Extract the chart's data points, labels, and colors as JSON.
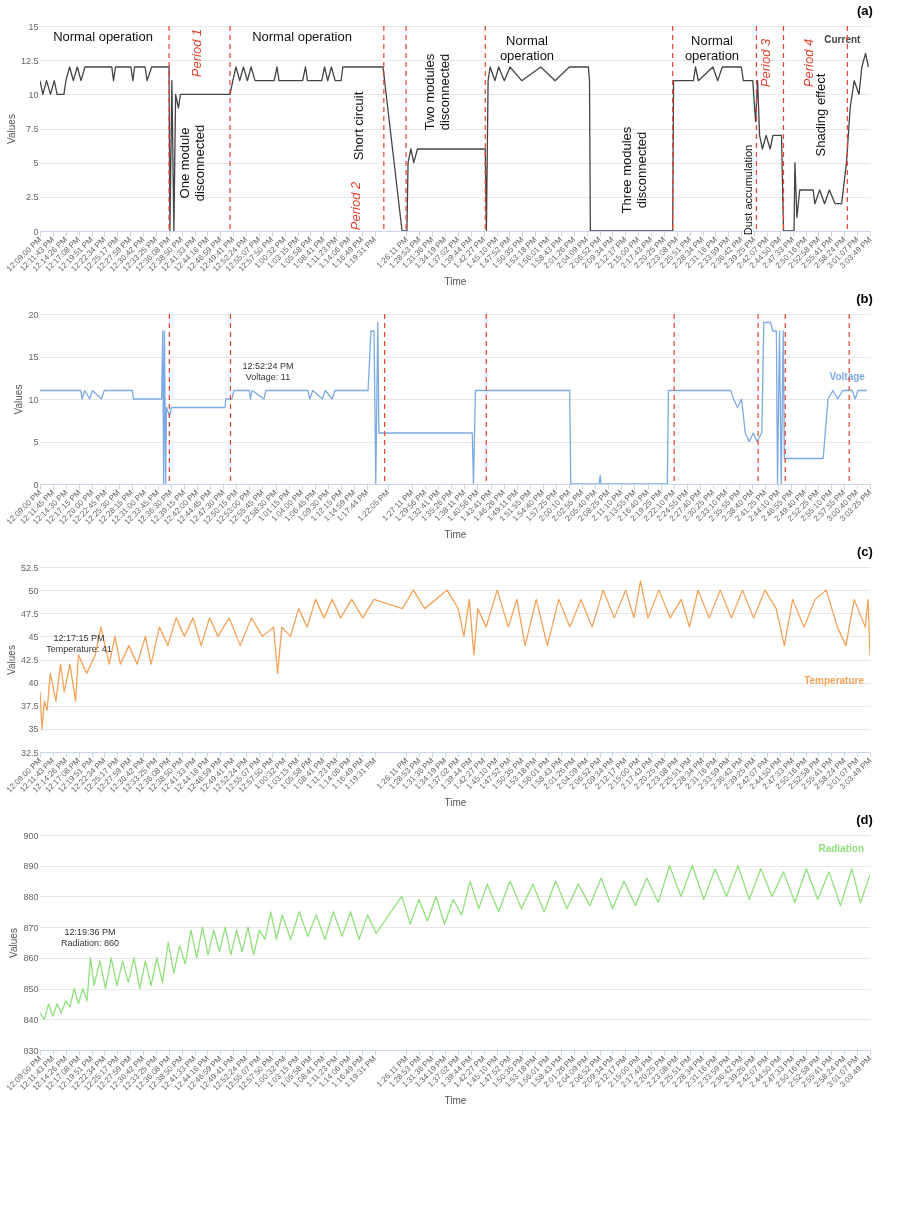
{
  "chart_data": [
    {
      "type": "line",
      "title": "(a)",
      "xlabel": "Time",
      "ylabel": "Values",
      "grid": "y",
      "xlim": [
        12.15,
        15.0636
      ],
      "ylim": [
        0,
        15
      ],
      "yticks": [
        0,
        2.5,
        5,
        7.5,
        10,
        12.5,
        15
      ],
      "xticks": [
        {
          "value": 12.15,
          "label": "12:09:00 PM"
        },
        {
          "value": 12.1953,
          "label": "12:11:43 PM"
        },
        {
          "value": 12.2406,
          "label": "12:14:26 PM"
        },
        {
          "value": 12.2856,
          "label": "12:17:08 PM"
        },
        {
          "value": 12.3308,
          "label": "12:19:51 PM"
        },
        {
          "value": 12.3761,
          "label": "12:22:34 PM"
        },
        {
          "value": 12.4214,
          "label": "12:25:17 PM"
        },
        {
          "value": 12.4664,
          "label": "12:27:59 PM"
        },
        {
          "value": 12.5117,
          "label": "12:30:42 PM"
        },
        {
          "value": 12.5569,
          "label": "12:33:25 PM"
        },
        {
          "value": 12.6022,
          "label": "12:36:08 PM"
        },
        {
          "value": 12.6472,
          "label": "12:38:50 PM"
        },
        {
          "value": 12.6925,
          "label": "12:41:33 PM"
        },
        {
          "value": 12.7378,
          "label": "12:44:16 PM"
        },
        {
          "value": 12.7831,
          "label": "12:46:59 PM"
        },
        {
          "value": 12.8281,
          "label": "12:49:41 PM"
        },
        {
          "value": 12.8733,
          "label": "12:52:24 PM"
        },
        {
          "value": 12.9186,
          "label": "12:55:07 PM"
        },
        {
          "value": 12.9639,
          "label": "12:57:50 PM"
        },
        {
          "value": 13.0089,
          "label": "1:00:32 PM"
        },
        {
          "value": 13.0542,
          "label": "1:03:15 PM"
        },
        {
          "value": 13.0994,
          "label": "1:05:58 PM"
        },
        {
          "value": 13.1447,
          "label": "1:08:41 PM"
        },
        {
          "value": 13.1897,
          "label": "1:11:23 PM"
        },
        {
          "value": 13.235,
          "label": "1:14:06 PM"
        },
        {
          "value": 13.2803,
          "label": "1:16:49 PM"
        },
        {
          "value": 13.3253,
          "label": "1:19:31 PM"
        },
        {
          "value": 13.4364,
          "label": "1:26:11 PM"
        },
        {
          "value": 13.4814,
          "label": "1:28:53 PM"
        },
        {
          "value": 13.5267,
          "label": "1:31:36 PM"
        },
        {
          "value": 13.5719,
          "label": "1:34:19 PM"
        },
        {
          "value": 13.6172,
          "label": "1:37:02 PM"
        },
        {
          "value": 13.6622,
          "label": "1:39:44 PM"
        },
        {
          "value": 13.7075,
          "label": "1:42:27 PM"
        },
        {
          "value": 13.7528,
          "label": "1:45:10 PM"
        },
        {
          "value": 13.7978,
          "label": "1:47:52 PM"
        },
        {
          "value": 13.8431,
          "label": "1:50:35 PM"
        },
        {
          "value": 13.8883,
          "label": "1:53:18 PM"
        },
        {
          "value": 13.9336,
          "label": "1:56:01 PM"
        },
        {
          "value": 13.9786,
          "label": "1:58:43 PM"
        },
        {
          "value": 14.0239,
          "label": "2:01:26 PM"
        },
        {
          "value": 14.0692,
          "label": "2:04:09 PM"
        },
        {
          "value": 14.1144,
          "label": "2:06:52 PM"
        },
        {
          "value": 14.1594,
          "label": "2:09:34 PM"
        },
        {
          "value": 14.2047,
          "label": "2:12:17 PM"
        },
        {
          "value": 14.25,
          "label": "2:15:00 PM"
        },
        {
          "value": 14.2953,
          "label": "2:17:43 PM"
        },
        {
          "value": 14.3403,
          "label": "2:20:25 PM"
        },
        {
          "value": 14.3856,
          "label": "2:23:08 PM"
        },
        {
          "value": 14.4308,
          "label": "2:25:51 PM"
        },
        {
          "value": 14.4761,
          "label": "2:28:34 PM"
        },
        {
          "value": 14.5211,
          "label": "2:31:16 PM"
        },
        {
          "value": 14.5664,
          "label": "2:33:59 PM"
        },
        {
          "value": 14.6117,
          "label": "2:36:42 PM"
        },
        {
          "value": 14.6569,
          "label": "2:39:25 PM"
        },
        {
          "value": 14.7019,
          "label": "2:42:07 PM"
        },
        {
          "value": 14.7472,
          "label": "2:44:50 PM"
        },
        {
          "value": 14.7925,
          "label": "2:47:33 PM"
        },
        {
          "value": 14.8378,
          "label": "2:50:16 PM"
        },
        {
          "value": 14.8828,
          "label": "2:52:58 PM"
        },
        {
          "value": 14.9281,
          "label": "2:55:41 PM"
        },
        {
          "value": 14.9733,
          "label": "2:58:24 PM"
        },
        {
          "value": 15.0186,
          "label": "3:01:07 PM"
        },
        {
          "value": 15.0636,
          "label": "3:03:49 PM"
        }
      ],
      "series": [
        {
          "name": "Current",
          "color": "#444444",
          "x": [
            12.15,
            12.16,
            12.173,
            12.187,
            12.2,
            12.21,
            12.234,
            12.241,
            12.254,
            12.267,
            12.281,
            12.294,
            12.308,
            12.402,
            12.408,
            12.415,
            12.469,
            12.476,
            12.482,
            12.519,
            12.526,
            12.542,
            12.603,
            12.606,
            12.613,
            12.62,
            12.626,
            12.636,
            12.643,
            12.817,
            12.827,
            12.838,
            12.851,
            12.864,
            12.878,
            12.891,
            12.905,
            12.972,
            12.982,
            12.989,
            13.072,
            13.082,
            13.089,
            13.139,
            13.149,
            13.16,
            13.173,
            13.186,
            13.207,
            13.213,
            13.354,
            13.421,
            13.438,
            13.442,
            13.452,
            13.462,
            13.475,
            13.713,
            13.717,
            13.723,
            13.73,
            13.747,
            13.76,
            13.78,
            13.8,
            13.841,
            13.908,
            13.958,
            14.008,
            14.075,
            14.079,
            14.082,
            14.371,
            14.374,
            14.444,
            14.451,
            14.461,
            14.512,
            14.529,
            14.545,
            14.612,
            14.619,
            14.652,
            14.662,
            14.669,
            14.676,
            14.686,
            14.699,
            14.713,
            14.723,
            14.753,
            14.76,
            14.797,
            14.8,
            14.807,
            14.817,
            14.864,
            14.87,
            14.887,
            14.904,
            14.921,
            14.941,
            14.964,
            14.981,
            14.994,
            15.008,
            15.025,
            15.035,
            15.048,
            15.058
          ],
          "values": [
            11,
            10,
            11,
            10,
            11,
            10,
            10,
            11,
            12,
            11,
            12,
            11,
            12,
            12,
            11,
            12,
            12,
            11,
            12,
            12,
            11,
            12,
            12,
            0,
            11,
            0,
            10,
            9,
            10,
            10,
            11,
            12,
            11,
            12,
            11,
            12,
            11,
            11,
            12,
            11,
            11,
            12,
            11,
            11,
            12,
            11,
            12,
            11,
            11,
            12,
            12,
            0,
            0,
            5,
            6,
            5,
            6,
            6,
            0,
            11,
            12,
            11,
            12,
            11,
            12,
            11,
            12,
            11,
            12,
            12,
            11,
            0,
            0,
            11,
            11,
            12,
            11,
            12,
            11,
            12,
            12,
            11,
            11,
            8,
            11,
            7,
            6,
            7,
            6,
            7,
            7,
            0,
            0,
            5,
            1,
            3,
            3,
            2,
            3,
            2,
            3,
            2,
            2,
            5,
            9,
            11,
            10,
            12,
            13,
            12
          ]
        }
      ],
      "ref_lines": [
        {
          "axis": "x",
          "value": 12.603,
          "color": "#e8412c",
          "line_style": "dashed"
        },
        {
          "axis": "x",
          "value": 12.817,
          "color": "#e8412c",
          "line_style": "dashed"
        },
        {
          "axis": "x",
          "value": 13.357,
          "color": "#e8412c",
          "line_style": "dashed"
        },
        {
          "axis": "x",
          "value": 13.435,
          "color": "#e8412c",
          "line_style": "dashed"
        },
        {
          "axis": "x",
          "value": 13.713,
          "color": "#e8412c",
          "line_style": "dashed"
        },
        {
          "axis": "x",
          "value": 14.371,
          "color": "#e8412c",
          "line_style": "dashed"
        },
        {
          "axis": "x",
          "value": 14.665,
          "color": "#e8412c",
          "line_style": "dashed"
        },
        {
          "axis": "x",
          "value": 14.76,
          "color": "#e8412c",
          "line_style": "dashed"
        },
        {
          "axis": "x",
          "value": 14.984,
          "color": "#e8412c",
          "line_style": "dashed"
        }
      ],
      "annotations": [
        "Normal operation",
        "Normal operation",
        "Normal operation",
        "Normal operation",
        "One module disconnected",
        "Short circuit",
        "Two modules disconnected",
        "Three modules disconnected",
        "Dust accumulation",
        "Shading effect",
        "Period 1",
        "Period 2",
        "Period 3",
        "Period 4"
      ]
    },
    {
      "type": "line",
      "title": "(b)",
      "xlabel": "Time",
      "ylabel": "Values",
      "grid": "y",
      "xlim": [
        12.15,
        15.0569
      ],
      "ylim": [
        0,
        20
      ],
      "yticks": [
        0,
        5,
        10,
        15,
        20
      ],
      "xticks": [
        {
          "value": 12.15,
          "label": "12:09:00 PM"
        },
        {
          "value": 12.1958,
          "label": "12:11:45 PM"
        },
        {
          "value": 12.2417,
          "label": "12:14:30 PM"
        },
        {
          "value": 12.2875,
          "label": "12:17:15 PM"
        },
        {
          "value": 12.3333,
          "label": "12:20:00 PM"
        },
        {
          "value": 12.3792,
          "label": "12:22:45 PM"
        },
        {
          "value": 12.425,
          "label": "12:25:30 PM"
        },
        {
          "value": 12.4708,
          "label": "12:28:15 PM"
        },
        {
          "value": 12.5167,
          "label": "12:31:00 PM"
        },
        {
          "value": 12.5625,
          "label": "12:33:45 PM"
        },
        {
          "value": 12.6083,
          "label": "12:36:30 PM"
        },
        {
          "value": 12.6542,
          "label": "12:39:15 PM"
        },
        {
          "value": 12.7,
          "label": "12:42:00 PM"
        },
        {
          "value": 12.7458,
          "label": "12:44:45 PM"
        },
        {
          "value": 12.7917,
          "label": "12:47:30 PM"
        },
        {
          "value": 12.8375,
          "label": "12:50:15 PM"
        },
        {
          "value": 12.8833,
          "label": "12:53:00 PM"
        },
        {
          "value": 12.9292,
          "label": "12:55:45 PM"
        },
        {
          "value": 12.975,
          "label": "12:58:30 PM"
        },
        {
          "value": 13.0208,
          "label": "1:01:15 PM"
        },
        {
          "value": 13.0667,
          "label": "1:04:00 PM"
        },
        {
          "value": 13.1125,
          "label": "1:06:45 PM"
        },
        {
          "value": 13.1583,
          "label": "1:09:30 PM"
        },
        {
          "value": 13.2042,
          "label": "1:12:15 PM"
        },
        {
          "value": 13.2497,
          "label": "1:14:59 PM"
        },
        {
          "value": 13.2956,
          "label": "1:17:44 PM"
        },
        {
          "value": 13.3681,
          "label": "1:22:05 PM"
        },
        {
          "value": 13.4531,
          "label": "1:27:11 PM"
        },
        {
          "value": 13.4989,
          "label": "1:29:56 PM"
        },
        {
          "value": 13.5447,
          "label": "1:32:41 PM"
        },
        {
          "value": 13.5906,
          "label": "1:35:26 PM"
        },
        {
          "value": 13.6364,
          "label": "1:38:11 PM"
        },
        {
          "value": 13.6822,
          "label": "1:40:56 PM"
        },
        {
          "value": 13.7281,
          "label": "1:43:41 PM"
        },
        {
          "value": 13.7739,
          "label": "1:46:26 PM"
        },
        {
          "value": 13.8197,
          "label": "1:49:11 PM"
        },
        {
          "value": 13.8653,
          "label": "1:51:55 PM"
        },
        {
          "value": 13.9111,
          "label": "1:54:40 PM"
        },
        {
          "value": 13.9569,
          "label": "1:57:25 PM"
        },
        {
          "value": 14.0028,
          "label": "2:00:10 PM"
        },
        {
          "value": 14.0486,
          "label": "2:02:55 PM"
        },
        {
          "value": 14.0944,
          "label": "2:05:40 PM"
        },
        {
          "value": 14.1403,
          "label": "2:08:25 PM"
        },
        {
          "value": 14.1861,
          "label": "2:11:10 PM"
        },
        {
          "value": 14.2319,
          "label": "2:13:55 PM"
        },
        {
          "value": 14.2778,
          "label": "2:16:40 PM"
        },
        {
          "value": 14.3236,
          "label": "2:19:25 PM"
        },
        {
          "value": 14.3694,
          "label": "2:22:10 PM"
        },
        {
          "value": 14.4153,
          "label": "2:24:55 PM"
        },
        {
          "value": 14.4611,
          "label": "2:27:40 PM"
        },
        {
          "value": 14.5069,
          "label": "2:30:25 PM"
        },
        {
          "value": 14.5528,
          "label": "2:33:10 PM"
        },
        {
          "value": 14.5986,
          "label": "2:35:55 PM"
        },
        {
          "value": 14.6444,
          "label": "2:38:40 PM"
        },
        {
          "value": 14.6903,
          "label": "2:41:25 PM"
        },
        {
          "value": 14.7361,
          "label": "2:44:10 PM"
        },
        {
          "value": 14.7819,
          "label": "2:46:55 PM"
        },
        {
          "value": 14.8278,
          "label": "2:49:40 PM"
        },
        {
          "value": 14.8736,
          "label": "2:52:25 PM"
        },
        {
          "value": 14.9194,
          "label": "2:55:10 PM"
        },
        {
          "value": 14.9653,
          "label": "2:57:55 PM"
        },
        {
          "value": 15.0111,
          "label": "3:00:40 PM"
        },
        {
          "value": 15.0569,
          "label": "3:03:25 PM"
        }
      ],
      "series": [
        {
          "name": "Voltage",
          "color": "#7cabe3",
          "x": [
            12.15,
            12.293,
            12.297,
            12.307,
            12.324,
            12.334,
            12.365,
            12.375,
            12.474,
            12.477,
            12.576,
            12.58,
            12.583,
            12.586,
            12.59,
            12.593,
            12.604,
            12.61,
            12.798,
            12.801,
            12.822,
            12.829,
            12.883,
            12.887,
            12.893,
            12.934,
            12.941,
            13.088,
            13.095,
            13.105,
            13.139,
            13.149,
            13.173,
            13.183,
            13.299,
            13.309,
            13.32,
            13.326,
            13.333,
            13.337,
            13.664,
            13.668,
            13.675,
            14.005,
            14.009,
            14.108,
            14.112,
            14.115,
            14.347,
            14.351,
            14.569,
            14.579,
            14.593,
            14.607,
            14.62,
            14.634,
            14.648,
            14.661,
            14.678,
            14.685,
            14.709,
            14.716,
            14.729,
            14.733,
            14.74,
            14.746,
            14.753,
            14.757,
            14.893,
            14.9,
            14.91,
            14.927,
            14.944,
            14.961,
            14.995,
            15.005,
            15.015,
            15.046
          ],
          "values": [
            11,
            11,
            10,
            11,
            10,
            11,
            10,
            11,
            11,
            10,
            10,
            18,
            0,
            18,
            0,
            9,
            8,
            9,
            9,
            10,
            10,
            11,
            11,
            10,
            11,
            10,
            11,
            11,
            10,
            11,
            10,
            11,
            10,
            11,
            11,
            18,
            18,
            0,
            19,
            6,
            6,
            0,
            11,
            11,
            0,
            0,
            1,
            0,
            0,
            11,
            11,
            10,
            9,
            10,
            6,
            5,
            6,
            5,
            6,
            19,
            19,
            18,
            18,
            0,
            18,
            0,
            18,
            3,
            3,
            6,
            10,
            11,
            10,
            11,
            11,
            10,
            11,
            11
          ]
        }
      ],
      "ref_lines": [
        {
          "axis": "x",
          "value": 12.603,
          "color": "#e8412c",
          "line_style": "dashed"
        },
        {
          "axis": "x",
          "value": 12.817,
          "color": "#e8412c",
          "line_style": "dashed"
        },
        {
          "axis": "x",
          "value": 13.357,
          "color": "#e8412c",
          "line_style": "dashed"
        },
        {
          "axis": "x",
          "value": 13.713,
          "color": "#e8412c",
          "line_style": "dashed"
        },
        {
          "axis": "x",
          "value": 14.371,
          "color": "#e8412c",
          "line_style": "dashed"
        },
        {
          "axis": "x",
          "value": 14.665,
          "color": "#e8412c",
          "line_style": "dashed"
        },
        {
          "axis": "x",
          "value": 14.76,
          "color": "#e8412c",
          "line_style": "dashed"
        },
        {
          "axis": "x",
          "value": 14.984,
          "color": "#e8412c",
          "line_style": "dashed"
        }
      ],
      "annotations": [
        "12:52:24 PM",
        "Voltage: 11"
      ]
    },
    {
      "type": "line",
      "title": "(c)",
      "xlabel": "Time",
      "ylabel": "Values",
      "grid": "y",
      "xlim": [
        12.15,
        15.0636
      ],
      "ylim": [
        32.5,
        52.5
      ],
      "yticks": [
        32.5,
        35,
        37.5,
        40,
        42.5,
        45,
        47.5,
        50,
        52.5
      ],
      "xticks": [
        {
          "value": 12.15,
          "label": "12:09:00 PM"
        },
        {
          "value": 12.1953,
          "label": "12:11:43 PM"
        },
        {
          "value": 12.2406,
          "label": "12:14:26 PM"
        },
        {
          "value": 12.2856,
          "label": "12:17:08 PM"
        },
        {
          "value": 12.3308,
          "label": "12:19:51 PM"
        },
        {
          "value": 12.3761,
          "label": "12:22:34 PM"
        },
        {
          "value": 12.4214,
          "label": "12:25:17 PM"
        },
        {
          "value": 12.4664,
          "label": "12:27:59 PM"
        },
        {
          "value": 12.5117,
          "label": "12:30:42 PM"
        },
        {
          "value": 12.5569,
          "label": "12:33:25 PM"
        },
        {
          "value": 12.6022,
          "label": "12:36:08 PM"
        },
        {
          "value": 12.6472,
          "label": "12:38:50 PM"
        },
        {
          "value": 12.6925,
          "label": "12:41:33 PM"
        },
        {
          "value": 12.7378,
          "label": "12:44:16 PM"
        },
        {
          "value": 12.7831,
          "label": "12:46:59 PM"
        },
        {
          "value": 12.8281,
          "label": "12:49:41 PM"
        },
        {
          "value": 12.8733,
          "label": "12:52:24 PM"
        },
        {
          "value": 12.9186,
          "label": "12:55:07 PM"
        },
        {
          "value": 12.9639,
          "label": "12:57:50 PM"
        },
        {
          "value": 13.0089,
          "label": "1:00:32 PM"
        },
        {
          "value": 13.0542,
          "label": "1:03:15 PM"
        },
        {
          "value": 13.0994,
          "label": "1:05:58 PM"
        },
        {
          "value": 13.1447,
          "label": "1:08:41 PM"
        },
        {
          "value": 13.1897,
          "label": "1:11:23 PM"
        },
        {
          "value": 13.235,
          "label": "1:14:06 PM"
        },
        {
          "value": 13.2803,
          "label": "1:16:49 PM"
        },
        {
          "value": 13.3253,
          "label": "1:19:31 PM"
        },
        {
          "value": 13.4364,
          "label": "1:26:11 PM"
        },
        {
          "value": 13.4814,
          "label": "1:28:53 PM"
        },
        {
          "value": 13.5267,
          "label": "1:31:36 PM"
        },
        {
          "value": 13.5719,
          "label": "1:34:19 PM"
        },
        {
          "value": 13.6172,
          "label": "1:37:02 PM"
        },
        {
          "value": 13.6622,
          "label": "1:39:44 PM"
        },
        {
          "value": 13.7075,
          "label": "1:42:27 PM"
        },
        {
          "value": 13.7528,
          "label": "1:45:10 PM"
        },
        {
          "value": 13.7978,
          "label": "1:47:52 PM"
        },
        {
          "value": 13.8431,
          "label": "1:50:35 PM"
        },
        {
          "value": 13.8883,
          "label": "1:53:18 PM"
        },
        {
          "value": 13.9336,
          "label": "1:56:01 PM"
        },
        {
          "value": 13.9786,
          "label": "1:58:43 PM"
        },
        {
          "value": 14.0239,
          "label": "2:01:26 PM"
        },
        {
          "value": 14.0692,
          "label": "2:04:09 PM"
        },
        {
          "value": 14.1144,
          "label": "2:06:52 PM"
        },
        {
          "value": 14.1594,
          "label": "2:09:34 PM"
        },
        {
          "value": 14.2047,
          "label": "2:12:17 PM"
        },
        {
          "value": 14.25,
          "label": "2:15:00 PM"
        },
        {
          "value": 14.2953,
          "label": "2:17:43 PM"
        },
        {
          "value": 14.3403,
          "label": "2:20:25 PM"
        },
        {
          "value": 14.3856,
          "label": "2:23:08 PM"
        },
        {
          "value": 14.4308,
          "label": "2:25:51 PM"
        },
        {
          "value": 14.4761,
          "label": "2:28:34 PM"
        },
        {
          "value": 14.5211,
          "label": "2:31:16 PM"
        },
        {
          "value": 14.5664,
          "label": "2:33:59 PM"
        },
        {
          "value": 14.6117,
          "label": "2:36:42 PM"
        },
        {
          "value": 14.6569,
          "label": "2:39:25 PM"
        },
        {
          "value": 14.7019,
          "label": "2:42:07 PM"
        },
        {
          "value": 14.7472,
          "label": "2:44:50 PM"
        },
        {
          "value": 14.7925,
          "label": "2:47:33 PM"
        },
        {
          "value": 14.8378,
          "label": "2:50:16 PM"
        },
        {
          "value": 14.8828,
          "label": "2:52:58 PM"
        },
        {
          "value": 14.9281,
          "label": "2:55:41 PM"
        },
        {
          "value": 14.9733,
          "label": "2:58:24 PM"
        },
        {
          "value": 15.0186,
          "label": "3:01:07 PM"
        },
        {
          "value": 15.0636,
          "label": "3:03:49 PM"
        }
      ],
      "series": [
        {
          "name": "Temperature",
          "color": "#f4a35a",
          "x": [
            12.15,
            12.157,
            12.165,
            12.175,
            12.186,
            12.206,
            12.222,
            12.235,
            12.255,
            12.275,
            12.285,
            12.314,
            12.344,
            12.364,
            12.393,
            12.413,
            12.432,
            12.462,
            12.491,
            12.52,
            12.54,
            12.569,
            12.599,
            12.628,
            12.657,
            12.687,
            12.716,
            12.745,
            12.775,
            12.814,
            12.853,
            12.892,
            12.931,
            12.97,
            12.984,
            12.999,
            13.029,
            13.058,
            13.088,
            13.117,
            13.147,
            13.176,
            13.205,
            13.244,
            13.283,
            13.322,
            13.422,
            13.461,
            13.5,
            13.54,
            13.579,
            13.618,
            13.638,
            13.657,
            13.673,
            13.687,
            13.716,
            13.755,
            13.794,
            13.824,
            13.853,
            13.892,
            13.931,
            13.971,
            14.01,
            14.049,
            14.088,
            14.127,
            14.166,
            14.206,
            14.235,
            14.258,
            14.284,
            14.323,
            14.362,
            14.401,
            14.43,
            14.46,
            14.499,
            14.538,
            14.577,
            14.616,
            14.655,
            14.695,
            14.734,
            14.763,
            14.792,
            14.832,
            14.871,
            14.91,
            14.949,
            14.979,
            15.008,
            15.047,
            15.057,
            15.0636
          ],
          "values": [
            39,
            35,
            38,
            37,
            41,
            38,
            42,
            39,
            42,
            38,
            43,
            41,
            43,
            46,
            42,
            45,
            42,
            44,
            42,
            45,
            42,
            46,
            44,
            47,
            45,
            47,
            44,
            47,
            45,
            47,
            44,
            47,
            45,
            46,
            41,
            46,
            45,
            48,
            46,
            49,
            47,
            49,
            47,
            49,
            47,
            49,
            48,
            50,
            48,
            49,
            50,
            48,
            45,
            49,
            43,
            48,
            46,
            50,
            46,
            49,
            44,
            49,
            44,
            49,
            46,
            49,
            46,
            50,
            47,
            50,
            47,
            51,
            47,
            50,
            47,
            49,
            46,
            50,
            47,
            50,
            47,
            50,
            47,
            50,
            48,
            44,
            49,
            46,
            49,
            50,
            46,
            44,
            49,
            46,
            49,
            43
          ]
        }
      ],
      "annotations": [
        "12:17:15 PM",
        "Temperature: 41"
      ]
    },
    {
      "type": "line",
      "title": "(d)",
      "xlabel": "Time",
      "ylabel": "Values",
      "grid": "y",
      "xlim": [
        12.15,
        15.0636
      ],
      "ylim": [
        830,
        900
      ],
      "yticks": [
        830,
        840,
        850,
        860,
        870,
        880,
        890,
        900
      ],
      "xticks": [
        {
          "value": 12.15,
          "label": "12:09:00 PM"
        },
        {
          "value": 12.1953,
          "label": "12:11:43 PM"
        },
        {
          "value": 12.2406,
          "label": "12:14:26 PM"
        },
        {
          "value": 12.2856,
          "label": "12:17:08 PM"
        },
        {
          "value": 12.3308,
          "label": "12:19:51 PM"
        },
        {
          "value": 12.3761,
          "label": "12:22:34 PM"
        },
        {
          "value": 12.4214,
          "label": "12:25:17 PM"
        },
        {
          "value": 12.4664,
          "label": "12:27:59 PM"
        },
        {
          "value": 12.5117,
          "label": "12:30:42 PM"
        },
        {
          "value": 12.5569,
          "label": "12:33:25 PM"
        },
        {
          "value": 12.6022,
          "label": "12:36:08 PM"
        },
        {
          "value": 12.6472,
          "label": "12:38:50 PM"
        },
        {
          "value": 12.6925,
          "label": "12:41:33 PM"
        },
        {
          "value": 12.7378,
          "label": "12:44:16 PM"
        },
        {
          "value": 12.7831,
          "label": "12:46:59 PM"
        },
        {
          "value": 12.8281,
          "label": "12:49:41 PM"
        },
        {
          "value": 12.8733,
          "label": "12:52:24 PM"
        },
        {
          "value": 12.9186,
          "label": "12:55:07 PM"
        },
        {
          "value": 12.9639,
          "label": "12:57:50 PM"
        },
        {
          "value": 13.0089,
          "label": "1:00:32 PM"
        },
        {
          "value": 13.0542,
          "label": "1:03:15 PM"
        },
        {
          "value": 13.0994,
          "label": "1:05:58 PM"
        },
        {
          "value": 13.1447,
          "label": "1:08:41 PM"
        },
        {
          "value": 13.1897,
          "label": "1:11:23 PM"
        },
        {
          "value": 13.235,
          "label": "1:14:06 PM"
        },
        {
          "value": 13.2803,
          "label": "1:16:49 PM"
        },
        {
          "value": 13.3253,
          "label": "1:19:31 PM"
        },
        {
          "value": 13.4364,
          "label": "1:26:11 PM"
        },
        {
          "value": 13.4814,
          "label": "1:28:53 PM"
        },
        {
          "value": 13.5267,
          "label": "1:31:36 PM"
        },
        {
          "value": 13.5719,
          "label": "1:34:19 PM"
        },
        {
          "value": 13.6172,
          "label": "1:37:02 PM"
        },
        {
          "value": 13.6622,
          "label": "1:39:44 PM"
        },
        {
          "value": 13.7075,
          "label": "1:42:27 PM"
        },
        {
          "value": 13.7528,
          "label": "1:45:10 PM"
        },
        {
          "value": 13.7978,
          "label": "1:47:52 PM"
        },
        {
          "value": 13.8431,
          "label": "1:50:35 PM"
        },
        {
          "value": 13.8883,
          "label": "1:53:18 PM"
        },
        {
          "value": 13.9336,
          "label": "1:56:01 PM"
        },
        {
          "value": 13.9786,
          "label": "1:58:43 PM"
        },
        {
          "value": 14.0239,
          "label": "2:01:26 PM"
        },
        {
          "value": 14.0692,
          "label": "2:04:09 PM"
        },
        {
          "value": 14.1144,
          "label": "2:06:52 PM"
        },
        {
          "value": 14.1594,
          "label": "2:09:34 PM"
        },
        {
          "value": 14.2047,
          "label": "2:12:17 PM"
        },
        {
          "value": 14.25,
          "label": "2:15:00 PM"
        },
        {
          "value": 14.2953,
          "label": "2:17:43 PM"
        },
        {
          "value": 14.3403,
          "label": "2:20:25 PM"
        },
        {
          "value": 14.3856,
          "label": "2:23:08 PM"
        },
        {
          "value": 14.4308,
          "label": "2:25:51 PM"
        },
        {
          "value": 14.4761,
          "label": "2:28:34 PM"
        },
        {
          "value": 14.5211,
          "label": "2:31:16 PM"
        },
        {
          "value": 14.5664,
          "label": "2:33:59 PM"
        },
        {
          "value": 14.6117,
          "label": "2:36:42 PM"
        },
        {
          "value": 14.6569,
          "label": "2:39:25 PM"
        },
        {
          "value": 14.7019,
          "label": "2:42:07 PM"
        },
        {
          "value": 14.7472,
          "label": "2:44:50 PM"
        },
        {
          "value": 14.7925,
          "label": "2:47:33 PM"
        },
        {
          "value": 14.8378,
          "label": "2:50:16 PM"
        },
        {
          "value": 14.8828,
          "label": "2:52:58 PM"
        },
        {
          "value": 14.9281,
          "label": "2:55:41 PM"
        },
        {
          "value": 14.9733,
          "label": "2:58:24 PM"
        },
        {
          "value": 15.0186,
          "label": "3:01:07 PM"
        },
        {
          "value": 15.0636,
          "label": "3:03:49 PM"
        }
      ],
      "series": [
        {
          "name": "Radiation",
          "color": "#90e07c",
          "x": [
            12.15,
            12.165,
            12.18,
            12.195,
            12.21,
            12.225,
            12.24,
            12.255,
            12.27,
            12.285,
            12.3,
            12.315,
            12.327,
            12.34,
            12.36,
            12.38,
            12.4,
            12.42,
            12.44,
            12.46,
            12.48,
            12.5,
            12.52,
            12.54,
            12.56,
            12.58,
            12.6,
            12.62,
            12.64,
            12.66,
            12.68,
            12.7,
            12.72,
            12.74,
            12.76,
            12.78,
            12.8,
            12.82,
            12.84,
            12.86,
            12.88,
            12.9,
            12.92,
            12.94,
            12.96,
            12.98,
            13.0,
            13.03,
            13.06,
            13.09,
            13.12,
            13.15,
            13.18,
            13.21,
            13.24,
            13.27,
            13.3,
            13.33,
            13.36,
            13.39,
            13.42,
            13.45,
            13.48,
            13.51,
            13.54,
            13.57,
            13.6,
            13.63,
            13.66,
            13.69,
            13.72,
            13.76,
            13.8,
            13.84,
            13.88,
            13.92,
            13.96,
            14.0,
            14.04,
            14.08,
            14.12,
            14.16,
            14.2,
            14.24,
            14.28,
            14.32,
            14.36,
            14.4,
            14.44,
            14.48,
            14.52,
            14.56,
            14.6,
            14.64,
            14.68,
            14.72,
            14.76,
            14.8,
            14.84,
            14.88,
            14.92,
            14.96,
            15.0,
            15.03,
            15.0636
          ],
          "values": [
            842,
            840,
            845,
            841,
            845,
            842,
            846,
            844,
            850,
            845,
            850,
            846,
            860,
            851,
            859,
            850,
            860,
            851,
            859,
            852,
            860,
            850,
            859,
            851,
            860,
            852,
            865,
            855,
            864,
            858,
            869,
            860,
            870,
            861,
            869,
            862,
            870,
            861,
            869,
            862,
            870,
            861,
            869,
            866,
            875,
            866,
            874,
            866,
            875,
            867,
            874,
            866,
            875,
            867,
            875,
            866,
            874,
            868,
            872,
            876,
            880,
            871,
            879,
            872,
            880,
            871,
            879,
            874,
            885,
            876,
            884,
            875,
            885,
            876,
            884,
            875,
            885,
            876,
            884,
            877,
            886,
            876,
            885,
            877,
            886,
            878,
            890,
            880,
            890,
            879,
            889,
            880,
            890,
            879,
            889,
            880,
            888,
            878,
            889,
            879,
            888,
            877,
            889,
            878,
            887
          ]
        }
      ],
      "annotations": [
        "12:19:36 PM",
        "Radiation: 860"
      ]
    }
  ]
}
